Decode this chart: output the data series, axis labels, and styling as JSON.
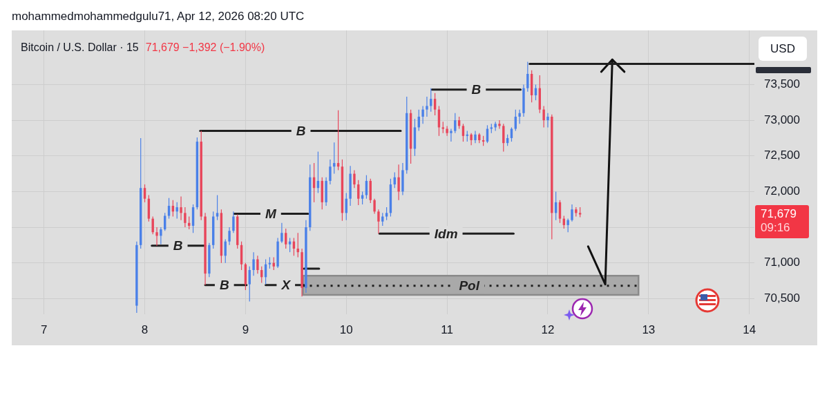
{
  "chart_data": {
    "type": "candlestick",
    "title": "Bitcoin / U.S. Dollar · 15",
    "subtitle": "71,679 −1,392 (−1.90%)",
    "x": [
      7.92,
      7.96,
      8.0,
      8.04,
      8.08,
      8.12,
      8.16,
      8.2,
      8.24,
      8.28,
      8.32,
      8.36,
      8.4,
      8.44,
      8.48,
      8.52,
      8.56,
      8.6,
      8.64,
      8.68,
      8.72,
      8.76,
      8.8,
      8.84,
      8.88,
      8.92,
      8.96,
      9.0,
      9.04,
      9.08,
      9.12,
      9.16,
      9.2,
      9.24,
      9.28,
      9.32,
      9.36,
      9.4,
      9.44,
      9.48,
      9.52,
      9.56,
      9.6,
      9.64,
      9.68,
      9.72,
      9.76,
      9.8,
      9.84,
      9.88,
      9.92,
      9.96,
      10.0,
      10.04,
      10.08,
      10.12,
      10.16,
      10.2,
      10.24,
      10.28,
      10.32,
      10.36,
      10.4,
      10.44,
      10.48,
      10.52,
      10.56,
      10.6,
      10.64,
      10.68,
      10.72,
      10.76,
      10.8,
      10.84,
      10.88,
      10.92,
      10.96,
      11.0,
      11.04,
      11.08,
      11.12,
      11.16,
      11.2,
      11.24,
      11.28,
      11.32,
      11.36,
      11.4,
      11.44,
      11.48,
      11.52,
      11.56,
      11.6,
      11.64,
      11.68,
      11.72,
      11.76,
      11.8,
      11.84,
      11.88,
      11.92,
      11.96,
      12.0,
      12.04,
      12.08,
      12.12,
      12.16,
      12.2,
      12.24,
      12.28,
      12.32
    ],
    "ohlc": [
      [
        70400,
        71300,
        70300,
        71250
      ],
      [
        71250,
        72750,
        71200,
        72050
      ],
      [
        72050,
        72100,
        71850,
        71900
      ],
      [
        71900,
        71950,
        71580,
        71620
      ],
      [
        71620,
        71650,
        71400,
        71430
      ],
      [
        71430,
        71500,
        71240,
        71380
      ],
      [
        71380,
        71500,
        71260,
        71470
      ],
      [
        71470,
        71700,
        71450,
        71660
      ],
      [
        71660,
        71910,
        71620,
        71800
      ],
      [
        71800,
        71880,
        71650,
        71720
      ],
      [
        71720,
        71850,
        71620,
        71780
      ],
      [
        71780,
        71930,
        71600,
        71700
      ],
      [
        71700,
        71780,
        71500,
        71560
      ],
      [
        71560,
        71650,
        71470,
        71520
      ],
      [
        71520,
        71820,
        71420,
        71780
      ],
      [
        71780,
        72760,
        71750,
        72700
      ],
      [
        72700,
        72850,
        71600,
        71650
      ],
      [
        71650,
        71700,
        70690,
        70850
      ],
      [
        70850,
        71280,
        70800,
        71250
      ],
      [
        71250,
        71720,
        71200,
        71650
      ],
      [
        71650,
        71950,
        71600,
        71700
      ],
      [
        71700,
        71750,
        71000,
        71100
      ],
      [
        71100,
        71330,
        71000,
        71300
      ],
      [
        71300,
        71500,
        71250,
        71450
      ],
      [
        71450,
        71720,
        71420,
        71650
      ],
      [
        71650,
        71680,
        71200,
        71250
      ],
      [
        71250,
        71300,
        70900,
        70980
      ],
      [
        70980,
        71000,
        70620,
        70700
      ],
      [
        70700,
        70950,
        70460,
        70900
      ],
      [
        70900,
        71150,
        70820,
        71050
      ],
      [
        71050,
        71100,
        70850,
        70900
      ],
      [
        70900,
        70950,
        70720,
        70800
      ],
      [
        70800,
        71050,
        70700,
        70980
      ],
      [
        70980,
        71080,
        70920,
        71000
      ],
      [
        71000,
        71080,
        70900,
        70950
      ],
      [
        70950,
        71350,
        70930,
        71300
      ],
      [
        71300,
        71560,
        71280,
        71420
      ],
      [
        71420,
        71480,
        71200,
        71260
      ],
      [
        71260,
        71350,
        71150,
        71300
      ],
      [
        71300,
        71350,
        71100,
        71200
      ],
      [
        71200,
        71420,
        71080,
        71150
      ],
      [
        71150,
        71200,
        70530,
        70650
      ],
      [
        70650,
        71600,
        70580,
        71500
      ],
      [
        71500,
        72380,
        71450,
        72200
      ],
      [
        72200,
        72400,
        71850,
        72050
      ],
      [
        72050,
        72560,
        71980,
        72150
      ],
      [
        72150,
        72200,
        71750,
        71850
      ],
      [
        71850,
        72200,
        71800,
        72150
      ],
      [
        72150,
        72450,
        72100,
        72350
      ],
      [
        72350,
        72690,
        72250,
        72400
      ],
      [
        72400,
        73140,
        72300,
        72350
      ],
      [
        72350,
        72450,
        71590,
        71700
      ],
      [
        71700,
        71980,
        71600,
        71900
      ],
      [
        71900,
        72360,
        71800,
        72250
      ],
      [
        72250,
        72300,
        72050,
        72100
      ],
      [
        72100,
        72160,
        71810,
        71900
      ],
      [
        71900,
        72000,
        71820,
        71950
      ],
      [
        71950,
        72230,
        71900,
        72150
      ],
      [
        72150,
        72180,
        71840,
        71880
      ],
      [
        71880,
        71900,
        71690,
        71720
      ],
      [
        71720,
        71750,
        71410,
        71580
      ],
      [
        71580,
        71700,
        71520,
        71650
      ],
      [
        71650,
        71780,
        71600,
        71700
      ],
      [
        71700,
        72180,
        71650,
        72100
      ],
      [
        72100,
        72270,
        72050,
        72200
      ],
      [
        72200,
        72380,
        71880,
        72000
      ],
      [
        72000,
        72400,
        71950,
        72300
      ],
      [
        72300,
        73330,
        72250,
        73100
      ],
      [
        73100,
        73150,
        72390,
        72600
      ],
      [
        72600,
        73020,
        72500,
        72900
      ],
      [
        72900,
        73150,
        72850,
        73050
      ],
      [
        73050,
        73200,
        72950,
        73150
      ],
      [
        73150,
        73330,
        73050,
        73200
      ],
      [
        73200,
        73450,
        73120,
        73300
      ],
      [
        73300,
        73380,
        73070,
        73150
      ],
      [
        73150,
        73200,
        72780,
        72900
      ],
      [
        72900,
        72980,
        72820,
        72880
      ],
      [
        72880,
        72920,
        72780,
        72820
      ],
      [
        72820,
        72880,
        72700,
        72850
      ],
      [
        72850,
        73100,
        72820,
        73000
      ],
      [
        73000,
        73050,
        72880,
        72920
      ],
      [
        72920,
        72950,
        72700,
        72780
      ],
      [
        72780,
        72850,
        72700,
        72800
      ],
      [
        72800,
        72820,
        72650,
        72720
      ],
      [
        72720,
        72850,
        72680,
        72800
      ],
      [
        72800,
        72820,
        72680,
        72720
      ],
      [
        72720,
        72780,
        72640,
        72700
      ],
      [
        72700,
        72930,
        72680,
        72880
      ],
      [
        72880,
        72950,
        72820,
        72900
      ],
      [
        72900,
        72980,
        72850,
        72950
      ],
      [
        72950,
        73000,
        72880,
        72920
      ],
      [
        72920,
        72950,
        72560,
        72680
      ],
      [
        72680,
        72800,
        72640,
        72750
      ],
      [
        72750,
        72900,
        72700,
        72880
      ],
      [
        72880,
        73150,
        72850,
        73050
      ],
      [
        73050,
        73150,
        72950,
        73100
      ],
      [
        73100,
        73500,
        73050,
        73450
      ],
      [
        73450,
        73820,
        73400,
        73650
      ],
      [
        73650,
        73700,
        73250,
        73350
      ],
      [
        73350,
        73500,
        73280,
        73450
      ],
      [
        73450,
        73630,
        73100,
        73150
      ],
      [
        73150,
        73200,
        72900,
        73000
      ],
      [
        73000,
        73100,
        72900,
        73050
      ],
      [
        73050,
        73080,
        71330,
        71700
      ],
      [
        71700,
        72000,
        71600,
        71850
      ],
      [
        71850,
        71880,
        71560,
        71620
      ],
      [
        71620,
        71660,
        71480,
        71530
      ],
      [
        71530,
        71620,
        71430,
        71600
      ],
      [
        71600,
        71820,
        71580,
        71750
      ],
      [
        71750,
        71780,
        71650,
        71700
      ],
      [
        71700,
        71780,
        71640,
        71679
      ]
    ],
    "colors": [
      "#4a80e8",
      "#4a80e8",
      "#e8455a",
      "#e8455a",
      "#e8455a",
      "#e8455a",
      "#4a80e8",
      "#4a80e8",
      "#4a80e8",
      "#e8455a",
      "#4a80e8",
      "#e8455a",
      "#e8455a",
      "#e8455a",
      "#4a80e8",
      "#4a80e8",
      "#e8455a",
      "#e8455a",
      "#4a80e8",
      "#4a80e8",
      "#4a80e8",
      "#e8455a",
      "#4a80e8",
      "#4a80e8",
      "#4a80e8",
      "#e8455a",
      "#e8455a",
      "#e8455a",
      "#4a80e8",
      "#4a80e8",
      "#e8455a",
      "#e8455a",
      "#4a80e8",
      "#4a80e8",
      "#e8455a",
      "#4a80e8",
      "#4a80e8",
      "#e8455a",
      "#4a80e8",
      "#e8455a",
      "#e8455a",
      "#e8455a",
      "#4a80e8",
      "#4a80e8",
      "#e8455a",
      "#4a80e8",
      "#e8455a",
      "#4a80e8",
      "#4a80e8",
      "#4a80e8",
      "#e8455a",
      "#e8455a",
      "#4a80e8",
      "#4a80e8",
      "#e8455a",
      "#e8455a",
      "#4a80e8",
      "#4a80e8",
      "#e8455a",
      "#e8455a",
      "#e8455a",
      "#4a80e8",
      "#4a80e8",
      "#4a80e8",
      "#4a80e8",
      "#e8455a",
      "#4a80e8",
      "#4a80e8",
      "#e8455a",
      "#4a80e8",
      "#4a80e8",
      "#4a80e8",
      "#4a80e8",
      "#4a80e8",
      "#e8455a",
      "#e8455a",
      "#e8455a",
      "#e8455a",
      "#4a80e8",
      "#4a80e8",
      "#e8455a",
      "#e8455a",
      "#4a80e8",
      "#e8455a",
      "#4a80e8",
      "#e8455a",
      "#e8455a",
      "#4a80e8",
      "#4a80e8",
      "#4a80e8",
      "#e8455a",
      "#e8455a",
      "#4a80e8",
      "#4a80e8",
      "#4a80e8",
      "#4a80e8",
      "#4a80e8",
      "#4a80e8",
      "#e8455a",
      "#4a80e8",
      "#e8455a",
      "#e8455a",
      "#4a80e8",
      "#e8455a",
      "#4a80e8",
      "#e8455a",
      "#e8455a",
      "#4a80e8",
      "#4a80e8",
      "#e8455a",
      "#e8455a"
    ],
    "series": [
      {
        "type": "line",
        "x": [
          8.07,
          8.6
        ],
        "values": [
          71240,
          71240
        ],
        "color": "#1f1f1f"
      },
      {
        "type": "line",
        "x": [
          8.55,
          10.54
        ],
        "values": [
          72850,
          72850
        ],
        "color": "#1f1f1f"
      },
      {
        "type": "line",
        "x": [
          8.6,
          9.01
        ],
        "values": [
          70690,
          70690
        ],
        "color": "#1f1f1f"
      },
      {
        "type": "line",
        "x": [
          9.2,
          9.58
        ],
        "values": [
          70690,
          70690
        ],
        "color": "#1f1f1f"
      },
      {
        "type": "line",
        "x": [
          8.89,
          9.62
        ],
        "values": [
          71690,
          71690
        ],
        "color": "#1f1f1f"
      },
      {
        "type": "line",
        "x": [
          9.58,
          9.73
        ],
        "values": [
          70920,
          70920
        ],
        "color": "#1f1f1f"
      },
      {
        "type": "line",
        "x": [
          10.33,
          11.66
        ],
        "values": [
          71410,
          71410
        ],
        "color": "#1f1f1f"
      },
      {
        "type": "line",
        "x": [
          10.85,
          11.73
        ],
        "values": [
          73430,
          73430
        ],
        "color": "#1f1f1f"
      },
      {
        "type": "line",
        "x": [
          11.82,
          14.05
        ],
        "values": [
          73790,
          73790
        ],
        "color": "#1f1f1f"
      },
      {
        "type": "line",
        "x": [
          9.57,
          12.9
        ],
        "values": [
          70680,
          70680
        ],
        "lower": [
          70550,
          70550
        ],
        "upper": [
          70820,
          70820
        ],
        "color": "#1f1f1f",
        "line_style": "dotted"
      },
      {
        "type": "line",
        "x": [
          12.4,
          12.57,
          12.64
        ],
        "values": [
          71230,
          70700,
          73850
        ],
        "color": "#111111"
      },
      {
        "type": "line",
        "x": [
          12.53,
          12.64,
          12.76
        ],
        "values": [
          73680,
          73850,
          73680
        ],
        "color": "#111111"
      }
    ],
    "xlim": [
      6.68,
      14.05
    ],
    "xticks": [
      7,
      8,
      9,
      10,
      11,
      12,
      13,
      14
    ],
    "ylim": [
      70280,
      74260
    ],
    "yticks": [
      {
        "value": 70500,
        "label": "70,500"
      },
      {
        "value": 71000,
        "label": "71,000"
      },
      {
        "value": 71500,
        "label": null
      },
      {
        "value": 72000,
        "label": "72,000"
      },
      {
        "value": 72500,
        "label": "72,500"
      },
      {
        "value": 73000,
        "label": "73,000"
      },
      {
        "value": 73500,
        "label": "73,500"
      }
    ],
    "grid": true,
    "annotations": [
      "mohammedmohammedgulu71, Apr 12, 2026 08:20 UTC",
      "USD",
      "71,679",
      "09:16",
      {
        "text": "B",
        "x": 8.33,
        "y": 71240
      },
      {
        "text": "B",
        "x": 9.55,
        "y": 72850
      },
      {
        "text": "M",
        "x": 9.25,
        "y": 71690
      },
      {
        "text": "B",
        "x": 8.79,
        "y": 70690
      },
      {
        "text": "X",
        "x": 9.4,
        "y": 70690
      },
      {
        "text": "Idm",
        "x": 10.99,
        "y": 71410
      },
      {
        "text": "B",
        "x": 11.29,
        "y": 73430
      },
      {
        "text": "Pol",
        "x": 11.22,
        "y": 70680
      }
    ]
  }
}
